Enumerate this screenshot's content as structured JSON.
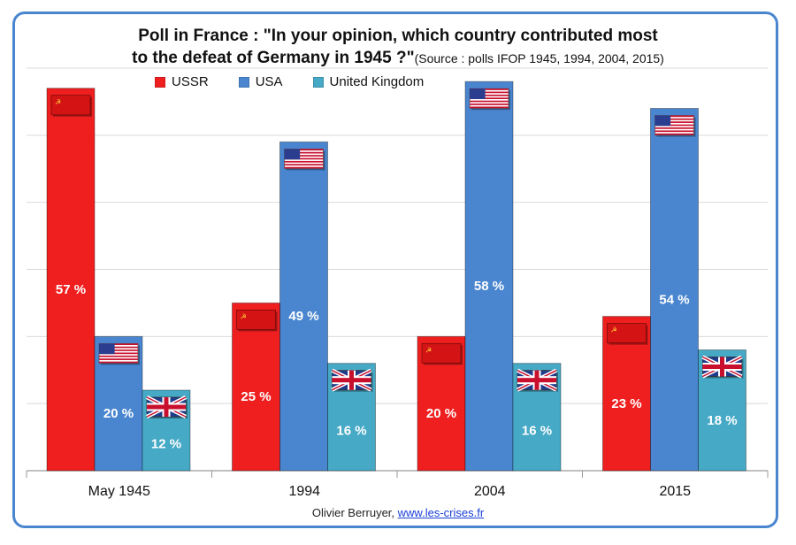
{
  "title": {
    "line1": "Poll in France : \"In your opinion, which country contributed most",
    "line2": "to the defeat of Germany in 1945 ?\"",
    "source": "(Source : polls IFOP 1945, 1994, 2004, 2015)"
  },
  "footer": {
    "author": "Olivier Berruyer,",
    "link": "www.les-crises.fr"
  },
  "colors": {
    "USSR": "#ef1f1f",
    "USA": "#4a86cf",
    "United Kingdom": "#46a9c6",
    "grid": "#d9d9d9",
    "frame": "#4a86cf"
  },
  "chart_data": {
    "type": "bar",
    "categories": [
      "May 1945",
      "1994",
      "2004",
      "2015"
    ],
    "series": [
      {
        "name": "USSR",
        "values": [
          57,
          25,
          20,
          23
        ],
        "labels": [
          "57 %",
          "25 %",
          "20 %",
          "23 %"
        ],
        "flag": "ussr-flag-icon"
      },
      {
        "name": "USA",
        "values": [
          20,
          49,
          58,
          54
        ],
        "labels": [
          "20 %",
          "49 %",
          "58 %",
          "54 %"
        ],
        "flag": "usa-flag-icon"
      },
      {
        "name": "United Kingdom",
        "values": [
          12,
          16,
          16,
          18
        ],
        "labels": [
          "12 %",
          "16 %",
          "16 %",
          "18 %"
        ],
        "flag": "uk-flag-icon"
      }
    ],
    "ylim": [
      0,
      60
    ],
    "grid": true,
    "legend_placement": "top-left"
  }
}
